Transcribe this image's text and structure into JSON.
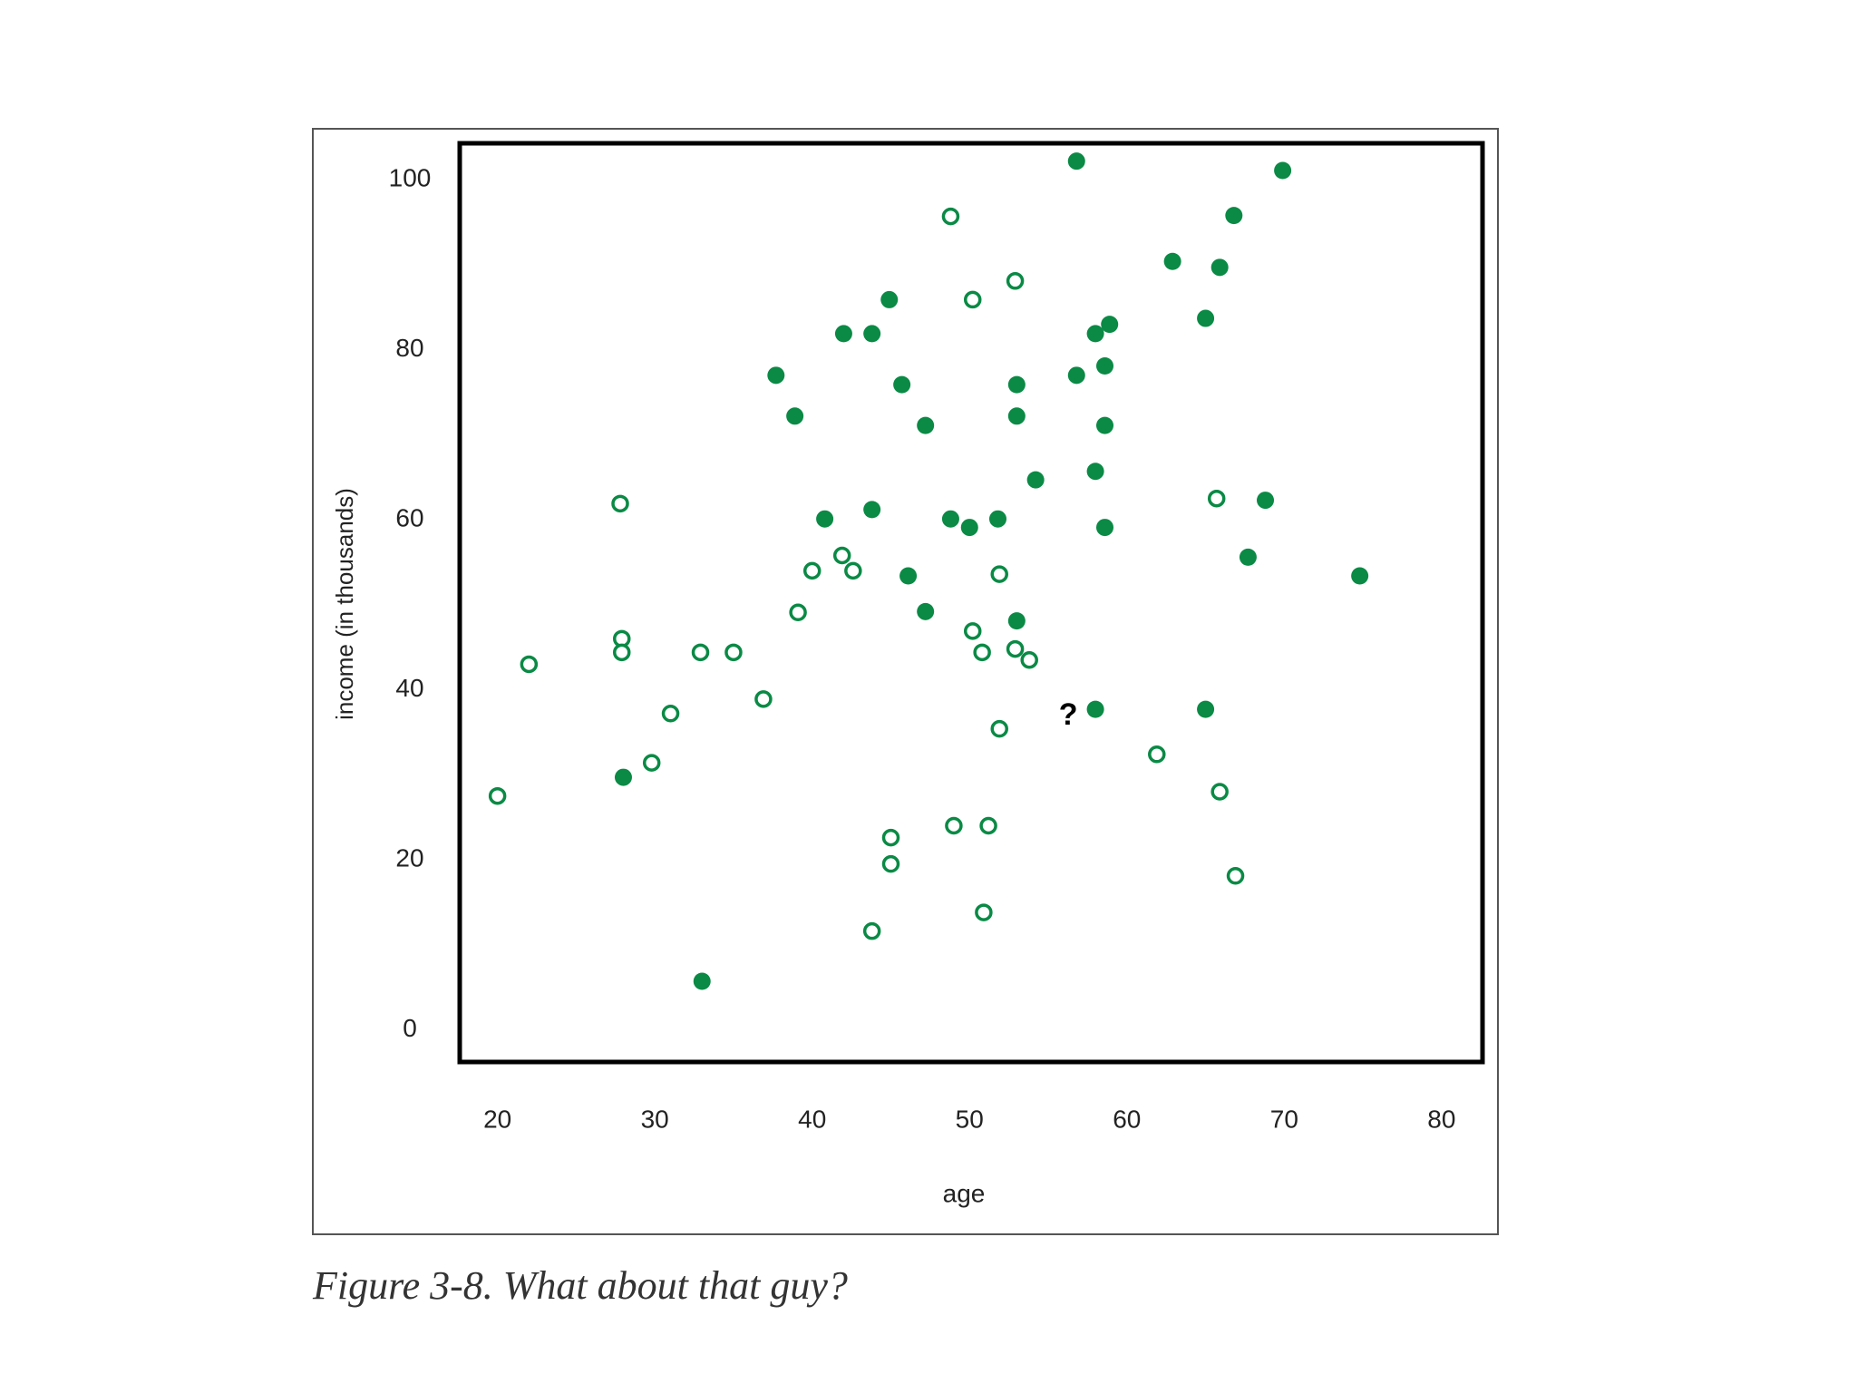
{
  "chart_data": {
    "type": "scatter",
    "xlabel": "age",
    "ylabel": "income (in thousands)",
    "caption": "Figure 3-8. What about that guy?",
    "annotation": "?",
    "xlim": [
      17.6,
      82.6
    ],
    "ylim": [
      -3.8,
      104.3
    ],
    "xticks": [
      20,
      30,
      40,
      50,
      60,
      70,
      80
    ],
    "yticks": [
      0,
      20,
      40,
      60,
      80,
      100
    ],
    "grid": false,
    "series": [
      {
        "color": "#0a8a45",
        "hollow": false,
        "x": [
          56.8,
          69.9,
          66.8,
          62.9,
          65.9,
          44.9,
          42.0,
          43.8,
          58.0,
          58.9,
          65.0,
          37.7,
          56.8,
          58.6,
          45.7,
          53.0,
          38.9,
          53.0,
          47.2,
          58.6,
          54.2,
          58.0,
          40.8,
          43.8,
          48.8,
          50.0,
          51.8,
          58.6,
          68.8,
          67.7,
          46.1,
          74.8,
          47.2,
          53.0,
          58.0,
          65.0,
          28.0,
          33.0
        ],
        "y": [
          102.2,
          101.1,
          95.8,
          90.4,
          89.7,
          85.9,
          81.9,
          81.9,
          81.9,
          83.0,
          83.7,
          77.0,
          77.0,
          78.1,
          75.9,
          75.9,
          72.2,
          72.2,
          71.1,
          71.1,
          64.7,
          65.7,
          60.1,
          61.2,
          60.1,
          59.1,
          60.1,
          59.1,
          62.3,
          55.6,
          53.4,
          53.4,
          49.2,
          48.1,
          37.7,
          37.7,
          29.7,
          5.7
        ]
      },
      {
        "color": "#0a8a45",
        "hollow": true,
        "x": [
          48.8,
          50.2,
          52.9,
          27.8,
          65.7,
          41.9,
          40.0,
          42.6,
          51.9,
          39.1,
          27.9,
          27.9,
          32.9,
          35.0,
          22.0,
          50.2,
          50.8,
          52.9,
          53.8,
          36.9,
          31.0,
          51.9,
          29.8,
          20.0,
          61.9,
          65.9,
          45.0,
          45.0,
          49.0,
          51.2,
          66.9,
          50.9,
          43.8
        ],
        "y": [
          95.7,
          85.9,
          88.1,
          61.9,
          62.5,
          55.8,
          54.0,
          54.0,
          53.6,
          49.1,
          46.0,
          44.4,
          44.4,
          44.4,
          43.0,
          46.9,
          44.4,
          44.8,
          43.5,
          38.9,
          37.2,
          35.4,
          31.4,
          27.5,
          32.4,
          28.0,
          22.6,
          19.5,
          24.0,
          24.0,
          18.1,
          13.8,
          11.6
        ]
      }
    ]
  }
}
